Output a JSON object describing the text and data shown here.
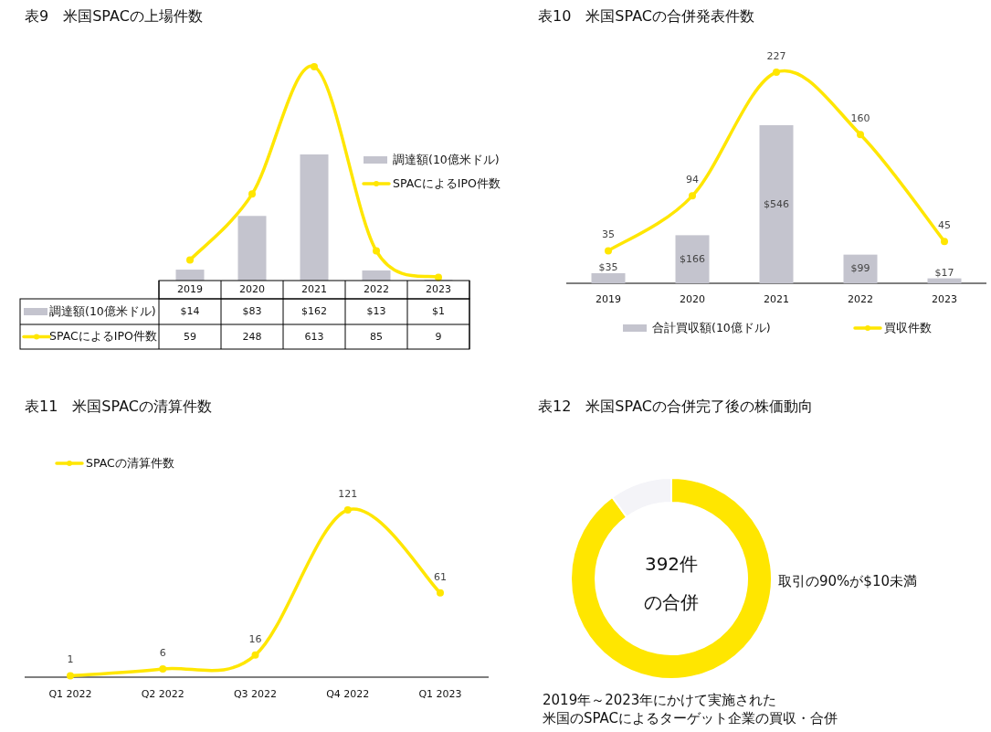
{
  "chart_data": [
    {
      "type": "bar",
      "title": "表9　米国SPACの上場件数",
      "categories": [
        "2019",
        "2020",
        "2021",
        "2022",
        "2023"
      ],
      "legend": "right",
      "marker": "circle",
      "series": [
        {
          "name": "調達額(10億米ドル)",
          "color": "#c4c4ce",
          "values": [
            14,
            83,
            162,
            13,
            1
          ],
          "value_labels": [
            "$14",
            "$83",
            "$162",
            "$13",
            "$1"
          ]
        },
        {
          "name": "SPACによるIPO件数",
          "type": "line",
          "axis": "y2",
          "color": "#ffe600",
          "values": [
            59,
            248,
            613,
            85,
            9
          ],
          "value_labels": [
            "59",
            "248",
            "613",
            "85",
            "9"
          ]
        }
      ]
    },
    {
      "type": "bar",
      "title": "表10　米国SPACの合併発表件数",
      "categories": [
        "2019",
        "2020",
        "2021",
        "2022",
        "2023"
      ],
      "legend": "bottom",
      "marker": "circle",
      "series": [
        {
          "name": "合計買収額(10億ドル)",
          "color": "#c4c4ce",
          "values": [
            35,
            166,
            546,
            99,
            17
          ],
          "value_labels": [
            "$35",
            "$166",
            "$546",
            "$99",
            "$17"
          ]
        },
        {
          "name": "買収件数",
          "type": "line",
          "axis": "y2",
          "color": "#ffe600",
          "values": [
            35,
            94,
            227,
            160,
            45
          ],
          "value_labels": [
            "35",
            "94",
            "227",
            "160",
            "45"
          ]
        }
      ]
    },
    {
      "type": "line",
      "title": "表11　米国SPACの清算件数",
      "categories": [
        "Q1 2022",
        "Q2 2022",
        "Q3 2022",
        "Q4 2022",
        "Q1 2023"
      ],
      "legend": "top left",
      "marker": "circle",
      "data_labels": true,
      "series": [
        {
          "name": "SPACの清算件数",
          "color": "#ffe600",
          "values": [
            1,
            6,
            16,
            121,
            61
          ]
        }
      ]
    },
    {
      "type": "donut",
      "title": "表12　米国SPACの合併完了後の株価動向",
      "categories": [
        null,
        null
      ],
      "values": [
        90,
        10
      ],
      "colors": [
        "#ffe600",
        "#f4f4f8"
      ],
      "annotations": [
        "392件",
        "の合併",
        "取引の90%が$10未満",
        "2019年～2023年にかけて実施された",
        "米国のSPACによるターゲット企業の買収・合併"
      ]
    }
  ]
}
